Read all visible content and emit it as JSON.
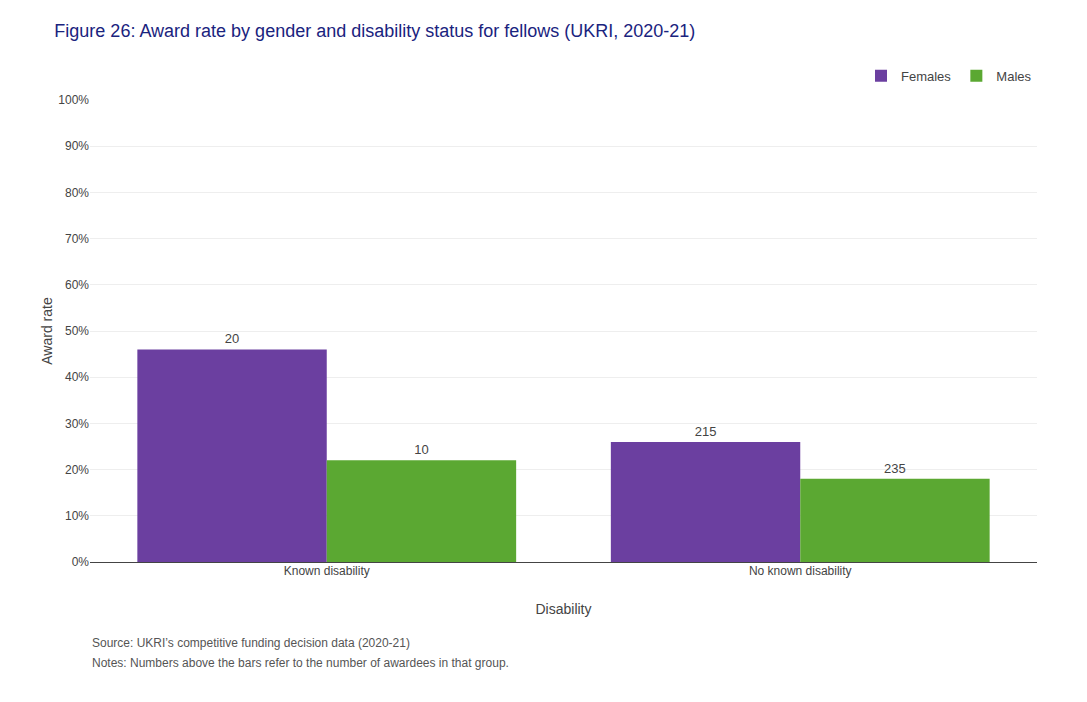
{
  "chart_data": {
    "type": "bar",
    "title": "Figure 26: Award rate by gender and disability status for fellows (UKRI, 2020-21)",
    "categories": [
      "Known disability",
      "No known disability"
    ],
    "series": [
      {
        "name": "Females",
        "color": "#6B3FA0",
        "values": [
          46.0,
          26.0
        ],
        "awardees": [
          20,
          215
        ]
      },
      {
        "name": "Males",
        "color": "#5BA832",
        "values": [
          22.0,
          18.0
        ],
        "awardees": [
          10,
          235
        ]
      }
    ],
    "xlabel": "Disability",
    "ylabel": "Award rate",
    "ylim": [
      0,
      100
    ],
    "yticks": [
      {
        "value": 0,
        "label": "0%"
      },
      {
        "value": 10,
        "label": "10%"
      },
      {
        "value": 20,
        "label": "20%"
      },
      {
        "value": 30,
        "label": "30%"
      },
      {
        "value": 40,
        "label": "40%"
      },
      {
        "value": 50,
        "label": "50%"
      },
      {
        "value": 60,
        "label": "60%"
      },
      {
        "value": 70,
        "label": "70%"
      },
      {
        "value": 80,
        "label": "80%"
      },
      {
        "value": 90,
        "label": "90%"
      },
      {
        "value": 100,
        "label": "100%"
      }
    ],
    "grid": true,
    "legend": "top right",
    "annotations": [
      "Source: UKRI’s competitive funding decision data (2020-21)",
      "Notes: Numbers above the bars refer to the number of awardees in that group."
    ]
  }
}
